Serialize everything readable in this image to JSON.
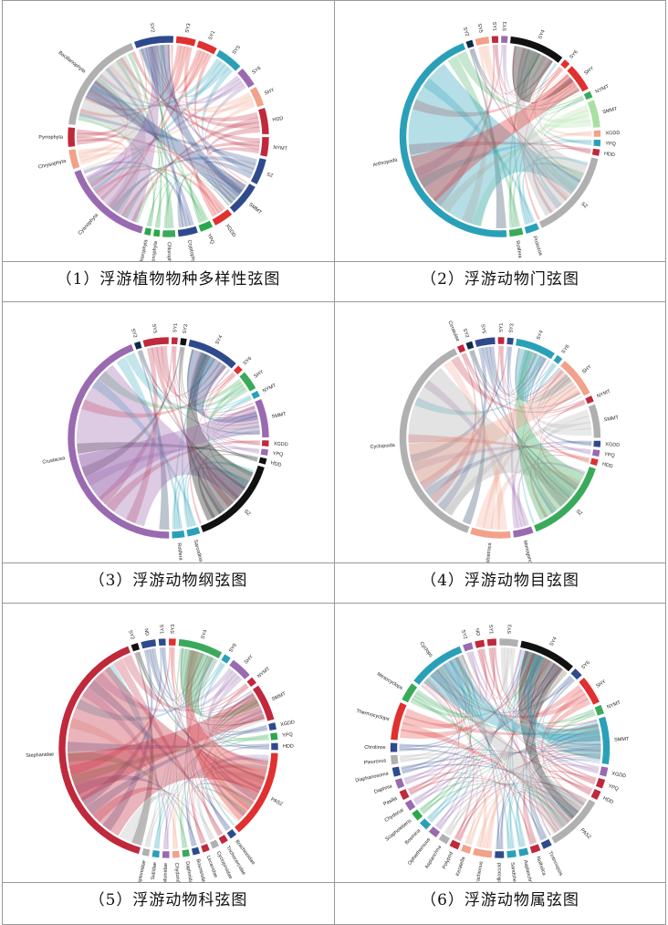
{
  "panels": [
    {
      "caption": "（1）浮游植物物种多样性弦图",
      "chart_data": {
        "type": "chord",
        "title": "",
        "groups": [
          {
            "name": "SY2",
            "color": "#2f4a8c",
            "value": 6
          },
          {
            "name": "SY3",
            "color": "#e03030",
            "value": 3
          },
          {
            "name": "SY1",
            "color": "#e03030",
            "value": 3
          },
          {
            "name": "SY5",
            "color": "#2aa0b8",
            "value": 4
          },
          {
            "name": "SY6",
            "color": "#9a6ab0",
            "value": 3
          },
          {
            "name": "SHY",
            "color": "#f2a18a",
            "value": 3
          },
          {
            "name": "HDD",
            "color": "#c0283c",
            "value": 4
          },
          {
            "name": "NYMT",
            "color": "#c0283c",
            "value": 3
          },
          {
            "name": "SZ",
            "color": "#2f4a8c",
            "value": 4
          },
          {
            "name": "SMMT",
            "color": "#2f4a8c",
            "value": 5
          },
          {
            "name": "XGDD",
            "color": "#e03030",
            "value": 3
          },
          {
            "name": "YPQ",
            "color": "#2aa84a",
            "value": 2
          },
          {
            "name": "Cryptophyta",
            "color": "#2f4a8c",
            "value": 3
          },
          {
            "name": "Chlorophyta",
            "color": "#3aaa5a",
            "value": 2
          },
          {
            "name": "Euglenophyta",
            "color": "#2aa84a",
            "value": 1
          },
          {
            "name": "Charophyta",
            "color": "#2aa84a",
            "value": 1
          },
          {
            "name": "Cyanophyta",
            "color": "#9a6ab0",
            "value": 14
          },
          {
            "name": "Chrysophyta",
            "color": "#f2a18a",
            "value": 3
          },
          {
            "name": "Pyrrophyta",
            "color": "#c0283c",
            "value": 3
          },
          {
            "name": "Bacillariophyta",
            "color": "#b0b0b0",
            "value": 16
          }
        ]
      }
    },
    {
      "caption": "（2）浮游动物门弦图",
      "chart_data": {
        "type": "chord",
        "title": "",
        "groups": [
          {
            "name": "SY2",
            "color": "#0d2a4a",
            "value": 1
          },
          {
            "name": "SY5",
            "color": "#f2a18a",
            "value": 2
          },
          {
            "name": "SY1",
            "color": "#c0283c",
            "value": 1
          },
          {
            "name": "SY3",
            "color": "#9a6ab0",
            "value": 1
          },
          {
            "name": "SY4",
            "color": "#111111",
            "value": 8
          },
          {
            "name": "SY6",
            "color": "#e03030",
            "value": 1
          },
          {
            "name": "SHY",
            "color": "#e03030",
            "value": 4
          },
          {
            "name": "NYMT",
            "color": "#3aaa5a",
            "value": 1
          },
          {
            "name": "SMMT",
            "color": "#a8e0a0",
            "value": 4
          },
          {
            "name": "XGDD",
            "color": "#f2a18a",
            "value": 1
          },
          {
            "name": "YPQ",
            "color": "#2aa0b8",
            "value": 1
          },
          {
            "name": "HDD",
            "color": "#c0283c",
            "value": 1
          },
          {
            "name": "SZ",
            "color": "#b0b0b0",
            "value": 13
          },
          {
            "name": "Protozoa",
            "color": "#2aa0b8",
            "value": 2
          },
          {
            "name": "Rotifera",
            "color": "#3aaa5a",
            "value": 2
          },
          {
            "name": "Arthropoda",
            "color": "#2aa0b8",
            "value": 40
          }
        ]
      }
    },
    {
      "caption": "（3）浮游动物纲弦图",
      "chart_data": {
        "type": "chord",
        "title": "",
        "groups": [
          {
            "name": "SY2",
            "color": "#0d2a4a",
            "value": 1
          },
          {
            "name": "SY5",
            "color": "#c0283c",
            "value": 4
          },
          {
            "name": "SY1",
            "color": "#c0283c",
            "value": 1
          },
          {
            "name": "SY3",
            "color": "#111111",
            "value": 1
          },
          {
            "name": "SY4",
            "color": "#2f4a8c",
            "value": 8
          },
          {
            "name": "SY6",
            "color": "#e03030",
            "value": 1
          },
          {
            "name": "SHY",
            "color": "#3aaa5a",
            "value": 3
          },
          {
            "name": "NYMT",
            "color": "#2aa0b8",
            "value": 1
          },
          {
            "name": "SMMT",
            "color": "#9a6ab0",
            "value": 6
          },
          {
            "name": "XGDD",
            "color": "#c0283c",
            "value": 1
          },
          {
            "name": "YPQ",
            "color": "#9a6ab0",
            "value": 1
          },
          {
            "name": "HDD",
            "color": "#111111",
            "value": 1
          },
          {
            "name": "SZ",
            "color": "#111111",
            "value": 14
          },
          {
            "name": "Sarcodina",
            "color": "#2aa0b8",
            "value": 2
          },
          {
            "name": "Rotifera",
            "color": "#2aa0b8",
            "value": 2
          },
          {
            "name": "Crustacea",
            "color": "#9a6ab0",
            "value": 42
          }
        ]
      }
    },
    {
      "caption": "（4）浮游动物目弦图",
      "chart_data": {
        "type": "chord",
        "title": "",
        "groups": [
          {
            "name": "SY2",
            "color": "#0d2a4a",
            "value": 1
          },
          {
            "name": "SY5",
            "color": "#2f4a8c",
            "value": 3
          },
          {
            "name": "SY1",
            "color": "#c0283c",
            "value": 1
          },
          {
            "name": "SY3",
            "color": "#2f4a8c",
            "value": 1
          },
          {
            "name": "SY4",
            "color": "#2aa0b8",
            "value": 6
          },
          {
            "name": "SY6",
            "color": "#2aa0b8",
            "value": 1
          },
          {
            "name": "SHY",
            "color": "#f2a18a",
            "value": 6
          },
          {
            "name": "NYMT",
            "color": "#c0283c",
            "value": 1
          },
          {
            "name": "SMMT",
            "color": "#b0b0b0",
            "value": 5
          },
          {
            "name": "XGDD",
            "color": "#2f4a8c",
            "value": 1
          },
          {
            "name": "YPQ",
            "color": "#9a6ab0",
            "value": 1
          },
          {
            "name": "HDD",
            "color": "#e03030",
            "value": 1
          },
          {
            "name": "SZ",
            "color": "#3aaa5a",
            "value": 13
          },
          {
            "name": "Monogononta",
            "color": "#9a6ab0",
            "value": 3
          },
          {
            "name": "Diplostraca",
            "color": "#f2a18a",
            "value": 6
          },
          {
            "name": "Cyclopoida",
            "color": "#b0b0b0",
            "value": 34
          },
          {
            "name": "Cirratulae",
            "color": "#c0283c",
            "value": 1
          }
        ]
      }
    },
    {
      "caption": "（5）浮游动物科弦图",
      "chart_data": {
        "type": "chord",
        "title": "",
        "groups": [
          {
            "name": "SY2",
            "color": "#111111",
            "value": 1
          },
          {
            "name": "ND",
            "color": "#2f4a8c",
            "value": 2
          },
          {
            "name": "SY1",
            "color": "#2f4a8c",
            "value": 1
          },
          {
            "name": "SY3",
            "color": "#e03030",
            "value": 1
          },
          {
            "name": "SY4",
            "color": "#3aaa5a",
            "value": 6
          },
          {
            "name": "SY6",
            "color": "#2aa0b8",
            "value": 1
          },
          {
            "name": "SHY",
            "color": "#9a6ab0",
            "value": 3
          },
          {
            "name": "NYMT",
            "color": "#c0283c",
            "value": 1
          },
          {
            "name": "SMMT",
            "color": "#c0283c",
            "value": 5
          },
          {
            "name": "XGDD",
            "color": "#2f4a8c",
            "value": 1
          },
          {
            "name": "YPQ",
            "color": "#2aa84a",
            "value": 1
          },
          {
            "name": "HDD",
            "color": "#2f4a8c",
            "value": 1
          },
          {
            "name": "PAS2",
            "color": "#e03030",
            "value": 12
          },
          {
            "name": "Brachionidae",
            "color": "#2f4a8c",
            "value": 1
          },
          {
            "name": "Trichocercidae",
            "color": "#c0283c",
            "value": 1
          },
          {
            "name": "Cyclopiniidae",
            "color": "#b0b0b0",
            "value": 1
          },
          {
            "name": "Lecanidae",
            "color": "#c0283c",
            "value": 1
          },
          {
            "name": "Bosminidae",
            "color": "#2f4a8c",
            "value": 1
          },
          {
            "name": "Daphniidae",
            "color": "#3aaa5a",
            "value": 1
          },
          {
            "name": "Chydoridae",
            "color": "#f2a18a",
            "value": 1
          },
          {
            "name": "Moinidae",
            "color": "#9a6ab0",
            "value": 1
          },
          {
            "name": "Sidiidae",
            "color": "#2aa0b8",
            "value": 1
          },
          {
            "name": "Diaptomidae",
            "color": "#b0b0b0",
            "value": 1
          },
          {
            "name": "Stephanidae",
            "color": "#c0283c",
            "value": 36
          }
        ]
      }
    },
    {
      "caption": "（6）浮游动物属弦图",
      "chart_data": {
        "type": "chord",
        "title": "",
        "groups": [
          {
            "name": "SY2",
            "color": "#9a6ab0",
            "value": 1
          },
          {
            "name": "NO",
            "color": "#c0283c",
            "value": 1
          },
          {
            "name": "SY1",
            "color": "#c0283c",
            "value": 1
          },
          {
            "name": "SY3",
            "color": "#b0b0b0",
            "value": 2
          },
          {
            "name": "SY4",
            "color": "#111111",
            "value": 6
          },
          {
            "name": "SY6",
            "color": "#2f4a8c",
            "value": 1
          },
          {
            "name": "SHY",
            "color": "#e03030",
            "value": 3
          },
          {
            "name": "NYMT",
            "color": "#3aaa5a",
            "value": 1
          },
          {
            "name": "SMMT",
            "color": "#2aa0b8",
            "value": 5
          },
          {
            "name": "XGDD",
            "color": "#9a6ab0",
            "value": 1
          },
          {
            "name": "YPQ",
            "color": "#c0283c",
            "value": 1
          },
          {
            "name": "HDD",
            "color": "#c0283c",
            "value": 1
          },
          {
            "name": "PAS2",
            "color": "#b0b0b0",
            "value": 6
          },
          {
            "name": "Tintinnopsis",
            "color": "#2f4a8c",
            "value": 1
          },
          {
            "name": "Notholca",
            "color": "#c0283c",
            "value": 1
          },
          {
            "name": "Asplanchna",
            "color": "#2aa0b8",
            "value": 1
          },
          {
            "name": "Sandshell",
            "color": "#2aa0b8",
            "value": 1
          },
          {
            "name": "Hellicoccid",
            "color": "#2f4a8c",
            "value": 1
          },
          {
            "name": "Brachionus",
            "color": "#f2a18a",
            "value": 2
          },
          {
            "name": "Keratella",
            "color": "#f2a18a",
            "value": 1
          },
          {
            "name": "Polypod",
            "color": "#c0283c",
            "value": 1
          },
          {
            "name": "Asplanchna",
            "color": "#b0b0b0",
            "value": 1
          },
          {
            "name": "Ophiethernuus",
            "color": "#9a6ab0",
            "value": 1
          },
          {
            "name": "Bosmina",
            "color": "#2aa0b8",
            "value": 1
          },
          {
            "name": "Scapholeberis",
            "color": "#2aa84a",
            "value": 1
          },
          {
            "name": "Chydorus",
            "color": "#9a6ab0",
            "value": 1
          },
          {
            "name": "Pasilia",
            "color": "#c0283c",
            "value": 1
          },
          {
            "name": "Daphnia",
            "color": "#9a6ab0",
            "value": 1
          },
          {
            "name": "Diaphanosoma",
            "color": "#2f4a8c",
            "value": 1
          },
          {
            "name": "Pleuroxus",
            "color": "#b0b0b0",
            "value": 1
          },
          {
            "name": "Chrolinos",
            "color": "#2f4a8c",
            "value": 1
          },
          {
            "name": "Thermocyclops",
            "color": "#e03030",
            "value": 4
          },
          {
            "name": "Mesocyclops",
            "color": "#3aaa5a",
            "value": 2
          },
          {
            "name": "Cyclops",
            "color": "#2aa0b8",
            "value": 6
          }
        ]
      }
    }
  ]
}
